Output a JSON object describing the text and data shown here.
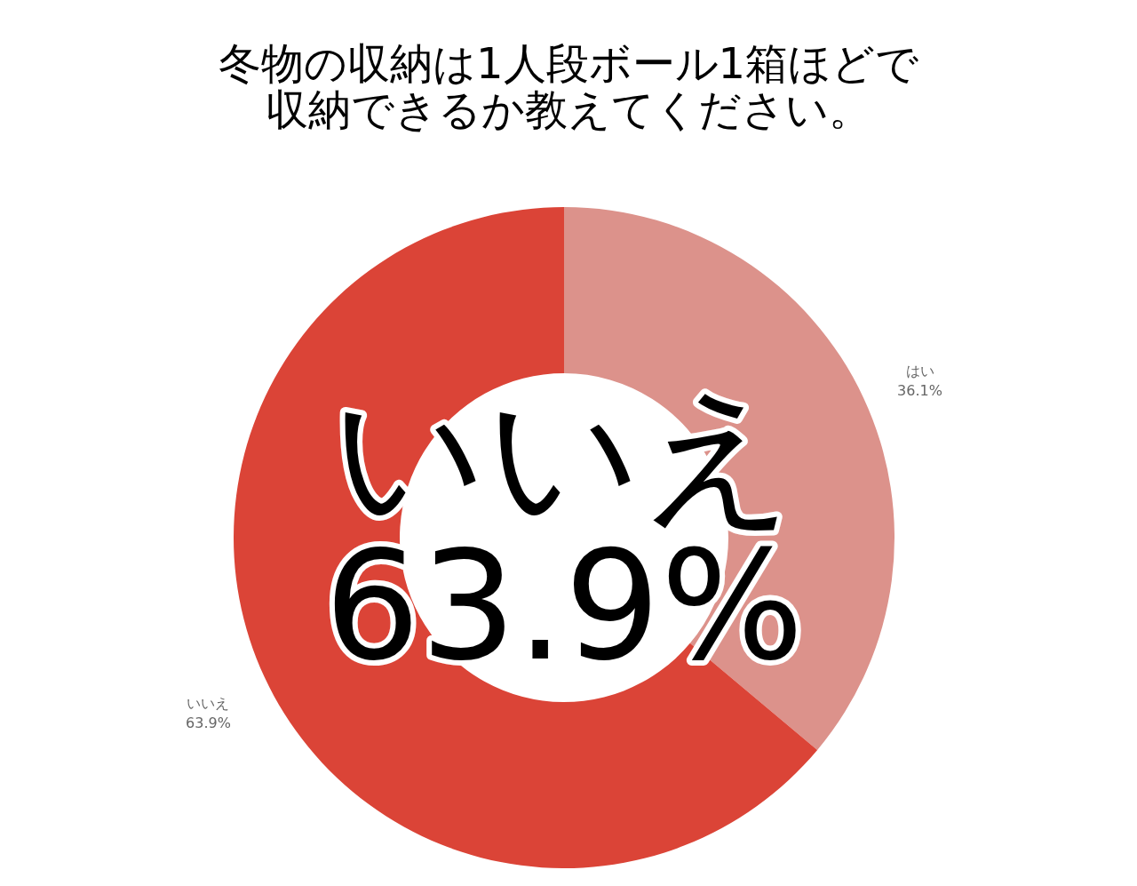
{
  "chart_data": {
    "type": "donut",
    "title": "冬物の収納は1人段ボール1箱ほどで収納できるか教えてください。",
    "categories": [
      "はい",
      "いいえ"
    ],
    "values": [
      36.1,
      63.9
    ],
    "colors": [
      "#dc928b",
      "#db4437"
    ],
    "value_labels": [
      "36.1%",
      "63.9%"
    ],
    "annotations": [
      "いいえ",
      "63.9%"
    ]
  }
}
